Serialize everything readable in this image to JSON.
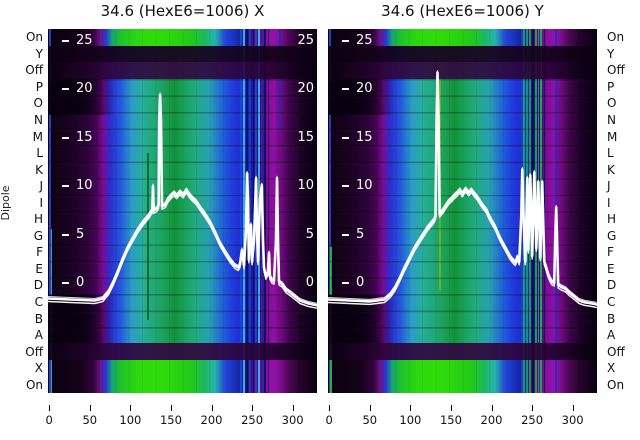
{
  "figure": {
    "background": "#ffffff"
  },
  "ylabel": "Dipole",
  "panels": [
    {
      "title": "34.6 (HexE6=1006) X"
    },
    {
      "title": "34.6 (HexE6=1006) Y"
    }
  ],
  "row_labels": [
    "On",
    "Y",
    "Off",
    "P",
    "O",
    "N",
    "M",
    "L",
    "K",
    "J",
    "I",
    "H",
    "G",
    "F",
    "E",
    "D",
    "C",
    "B",
    "A",
    "Off",
    "X",
    "On"
  ],
  "colors": {
    "bright_green": "#2bd80f",
    "green_patch": "#11913a",
    "teal": "#27ad9c",
    "cyan": "#2b9cc8",
    "blue": "#2038dc",
    "magenta": "#8e10a4",
    "dark_purple": "#2e0439",
    "background_dark": "#05000a",
    "curve": "#ffffff",
    "tick_text_inside": "#ffffff",
    "axis_text": "#111111"
  },
  "chart_data": {
    "type": [
      "heatmap",
      "line"
    ],
    "title_left": "34.6 (HexE6=1006) X",
    "title_right": "34.6 (HexE6=1006) Y",
    "x_ticks": [
      0,
      50,
      100,
      150,
      200,
      250,
      300
    ],
    "y_ticks": [
      25,
      20,
      15,
      10,
      5,
      0
    ],
    "x_range": [
      -1.5,
      330
    ],
    "y_range": [
      -11.34,
      26.19
    ],
    "row_categories": [
      "On",
      "Y",
      "Off",
      "P",
      "O",
      "N",
      "M",
      "L",
      "K",
      "J",
      "I",
      "H",
      "G",
      "F",
      "E",
      "D",
      "C",
      "B",
      "A",
      "Off",
      "X",
      "On"
    ],
    "row_bands": {
      "bright_top": [
        0
      ],
      "dim": [
        1
      ],
      "off_top": [
        2
      ],
      "blob": [
        3,
        18
      ],
      "off_bottom": [
        19
      ],
      "bright_bottom": [
        20,
        21
      ]
    },
    "legend": "none",
    "grid": false,
    "panels": [
      {
        "name": "X",
        "line_points": [
          [
            -1.5,
            -1.6
          ],
          [
            26,
            -1.7
          ],
          [
            56,
            -1.8
          ],
          [
            66,
            -1.6
          ],
          [
            73,
            -0.9
          ],
          [
            79,
            0.1
          ],
          [
            85,
            1.3
          ],
          [
            91,
            2.6
          ],
          [
            97,
            3.7
          ],
          [
            103,
            4.6
          ],
          [
            109,
            5.5
          ],
          [
            116,
            6.3
          ],
          [
            122,
            6.9
          ],
          [
            125,
            7.3
          ],
          [
            127,
            7.5
          ],
          [
            127.9,
            10.0
          ],
          [
            128.8,
            7.5
          ],
          [
            133,
            7.7
          ],
          [
            134.8,
            8.0
          ],
          [
            135.5,
            16.6
          ],
          [
            136.6,
            19.4
          ],
          [
            137.7,
            16.6
          ],
          [
            139,
            7.9
          ],
          [
            143,
            8.1
          ],
          [
            146,
            8.6
          ],
          [
            150,
            9.0
          ],
          [
            154,
            9.3
          ],
          [
            157,
            9.0
          ],
          [
            161,
            9.4
          ],
          [
            165,
            9.1
          ],
          [
            169,
            9.6
          ],
          [
            172,
            9.2
          ],
          [
            176,
            8.8
          ],
          [
            181,
            8.4
          ],
          [
            186,
            7.8
          ],
          [
            192,
            7.1
          ],
          [
            198,
            6.3
          ],
          [
            204,
            5.3
          ],
          [
            210,
            4.2
          ],
          [
            217,
            3.2
          ],
          [
            223,
            2.4
          ],
          [
            229,
            1.8
          ],
          [
            233,
            1.6
          ],
          [
            235,
            1.9
          ],
          [
            237.6,
            3.4
          ],
          [
            240,
            1.8
          ],
          [
            242.5,
            5.5
          ],
          [
            243.8,
            11.3
          ],
          [
            245,
            8.6
          ],
          [
            246,
            2.4
          ],
          [
            248.7,
            6.0
          ],
          [
            250,
            2.2
          ],
          [
            252.4,
            4.4
          ],
          [
            254.9,
            10.8
          ],
          [
            256,
            5.5
          ],
          [
            257.3,
            2.2
          ],
          [
            259.8,
            8.6
          ],
          [
            262,
            10.1
          ],
          [
            263.5,
            4.4
          ],
          [
            264.7,
            1.6
          ],
          [
            267,
            0.7
          ],
          [
            269.6,
            1.1
          ],
          [
            270.9,
            3.1
          ],
          [
            272,
            0.7
          ],
          [
            274.6,
            0.3
          ],
          [
            277,
            0.2
          ],
          [
            279.5,
            4.4
          ],
          [
            280.7,
            10.8
          ],
          [
            282,
            4.4
          ],
          [
            283.2,
            0.1
          ],
          [
            287,
            -0.1
          ],
          [
            292,
            -0.7
          ],
          [
            297,
            -1.0
          ],
          [
            303,
            -1.4
          ],
          [
            309,
            -1.8
          ],
          [
            319,
            -2.1
          ],
          [
            330,
            -2.3
          ]
        ],
        "glitch_columns": [
          {
            "x": 0.5,
            "w": 2,
            "color": "#2846d8",
            "y0": 0,
            "y1": 1
          },
          {
            "x": 2.5,
            "w": 1,
            "color": "#28b8d8",
            "y0": 0.55,
            "y1": 1
          },
          {
            "x": 122,
            "w": 2,
            "color": "#0b6b16",
            "y0": 0.34,
            "y1": 0.8
          },
          {
            "x": 236,
            "w": 2,
            "color": "#2a3fe0",
            "y0": 0,
            "y1": 1
          },
          {
            "x": 240,
            "w": 1.5,
            "color": "#35c4dc",
            "y0": 0,
            "y1": 1
          },
          {
            "x": 243.5,
            "w": 2,
            "color": "#0a1058",
            "y0": 0,
            "y1": 1
          },
          {
            "x": 247.5,
            "w": 2.5,
            "color": "#2438e0",
            "y0": 0,
            "y1": 1
          },
          {
            "x": 251.5,
            "w": 1.5,
            "color": "#0a1058",
            "y0": 0,
            "y1": 1
          },
          {
            "x": 255,
            "w": 2,
            "color": "#2a3fe0",
            "y0": 0,
            "y1": 1
          },
          {
            "x": 258.5,
            "w": 1.5,
            "color": "#38c0e0",
            "y0": 0,
            "y1": 1
          },
          {
            "x": 262,
            "w": 2,
            "color": "#1a28c0",
            "y0": 0,
            "y1": 1
          },
          {
            "x": 266,
            "w": 1.5,
            "color": "#0a1058",
            "y0": 0,
            "y1": 1
          },
          {
            "x": 270,
            "w": 1,
            "color": "#321060",
            "y0": 0,
            "y1": 1
          },
          {
            "x": 284,
            "w": 2,
            "color": "#1c2cb4",
            "y0": 0,
            "y1": 0.28
          }
        ]
      },
      {
        "name": "Y",
        "line_points": [
          [
            -1.6,
            -1.7
          ],
          [
            25,
            -1.8
          ],
          [
            50,
            -1.9
          ],
          [
            68,
            -1.7
          ],
          [
            75,
            -1.2
          ],
          [
            81,
            -0.5
          ],
          [
            87,
            0.5
          ],
          [
            93,
            1.6
          ],
          [
            99,
            2.6
          ],
          [
            105,
            3.6
          ],
          [
            111,
            4.4
          ],
          [
            118,
            5.3
          ],
          [
            121,
            5.7
          ],
          [
            125,
            6.1
          ],
          [
            129,
            6.5
          ],
          [
            131,
            6.9
          ],
          [
            132.3,
            16.8
          ],
          [
            133.5,
            21.7
          ],
          [
            134.8,
            16.8
          ],
          [
            136,
            7.1
          ],
          [
            140,
            7.5
          ],
          [
            143,
            7.9
          ],
          [
            147,
            8.4
          ],
          [
            151,
            8.7
          ],
          [
            154,
            9.0
          ],
          [
            158,
            9.3
          ],
          [
            161,
            9.6
          ],
          [
            164,
            9.2
          ],
          [
            168,
            9.7
          ],
          [
            172,
            9.3
          ],
          [
            175,
            9.6
          ],
          [
            179,
            9.2
          ],
          [
            183,
            8.8
          ],
          [
            186,
            8.4
          ],
          [
            190,
            7.9
          ],
          [
            194,
            7.5
          ],
          [
            197,
            6.9
          ],
          [
            201,
            6.3
          ],
          [
            205,
            5.7
          ],
          [
            208,
            5.1
          ],
          [
            212,
            4.4
          ],
          [
            216,
            3.8
          ],
          [
            220,
            3.2
          ],
          [
            223,
            2.7
          ],
          [
            227,
            2.3
          ],
          [
            229.4,
            2.1
          ],
          [
            231.8,
            2.7
          ],
          [
            234.3,
            2.2
          ],
          [
            236.7,
            7.0
          ],
          [
            238,
            11.7
          ],
          [
            239.2,
            7.5
          ],
          [
            241.6,
            2.2
          ],
          [
            244.1,
            10.8
          ],
          [
            245.3,
            3.4
          ],
          [
            247.8,
            11.1
          ],
          [
            250.2,
            2.8
          ],
          [
            252.7,
            11.4
          ],
          [
            255.2,
            3.6
          ],
          [
            257.6,
            10.4
          ],
          [
            260.1,
            2.6
          ],
          [
            262.5,
            10.4
          ],
          [
            265,
            2.2
          ],
          [
            267.4,
            1.6
          ],
          [
            269.9,
            0.9
          ],
          [
            272.4,
            0.4
          ],
          [
            274.8,
            0.1
          ],
          [
            277.3,
            0.0
          ],
          [
            278.5,
            4.4
          ],
          [
            279.7,
            7.8
          ],
          [
            281,
            3.9
          ],
          [
            282.2,
            -0.2
          ],
          [
            285.9,
            -0.4
          ],
          [
            291,
            -0.6
          ],
          [
            296,
            -1.0
          ],
          [
            302,
            -1.4
          ],
          [
            308,
            -1.8
          ],
          [
            315,
            -2.0
          ],
          [
            323,
            -2.1
          ],
          [
            329,
            -2.2
          ]
        ],
        "glitch_columns": [
          {
            "x": 0.5,
            "w": 2,
            "color": "#2846d8",
            "y0": 0,
            "y1": 1
          },
          {
            "x": 2,
            "w": 1.5,
            "color": "#20c040",
            "y0": 0.6,
            "y1": 1
          },
          {
            "x": 136,
            "w": 2,
            "color": "#6db414",
            "y0": 0.1,
            "y1": 0.72
          },
          {
            "x": 237,
            "w": 2,
            "color": "#2438e0",
            "y0": 0,
            "y1": 1
          },
          {
            "x": 240.5,
            "w": 2,
            "color": "#1faa50",
            "y0": 0,
            "y1": 1
          },
          {
            "x": 244,
            "w": 1.5,
            "color": "#1a9a8c",
            "y0": 0,
            "y1": 1
          },
          {
            "x": 247.5,
            "w": 2,
            "color": "#1faa50",
            "y0": 0,
            "y1": 1
          },
          {
            "x": 251,
            "w": 1.5,
            "color": "#0a1058",
            "y0": 0,
            "y1": 1
          },
          {
            "x": 254.5,
            "w": 2,
            "color": "#1faa50",
            "y0": 0,
            "y1": 1
          },
          {
            "x": 258,
            "w": 1.5,
            "color": "#1a9a8c",
            "y0": 0,
            "y1": 1
          },
          {
            "x": 261.5,
            "w": 2,
            "color": "#22b058",
            "y0": 0,
            "y1": 1
          },
          {
            "x": 265,
            "w": 1.5,
            "color": "#0a1058",
            "y0": 0,
            "y1": 1
          },
          {
            "x": 280,
            "w": 2,
            "color": "#2030c8",
            "y0": 0,
            "y1": 1
          }
        ]
      }
    ]
  }
}
